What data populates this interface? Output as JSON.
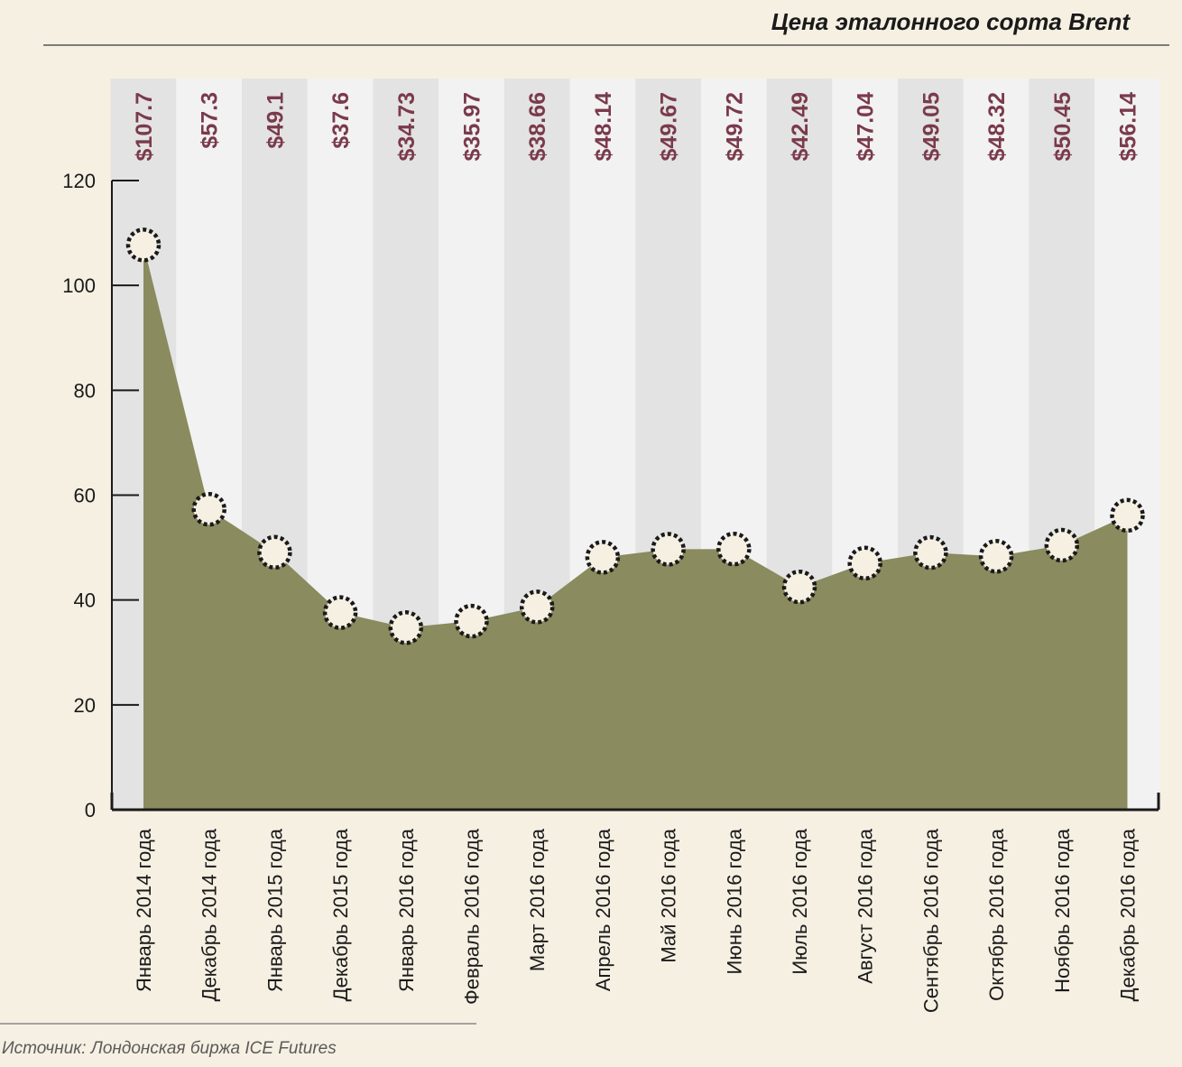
{
  "chart_data": {
    "type": "area",
    "title": "Цена эталонного сорта Brent",
    "source": "Источник: Лондонская биржа ICE Futures",
    "categories": [
      "Январь 2014 года",
      "Декабрь 2014 года",
      "Январь 2015 года",
      "Декабрь 2015 года",
      "Январь 2016 года",
      "Февраль 2016 года",
      "Март 2016 года",
      "Апрель 2016 года",
      "Май 2016 года",
      "Июнь 2016 года",
      "Июль 2016 года",
      "Август 2016 года",
      "Сентябрь 2016 года",
      "Октябрь 2016 года",
      "Ноябрь 2016 года",
      "Декабрь 2016 года"
    ],
    "values": [
      107.7,
      57.3,
      49.1,
      37.6,
      34.73,
      35.97,
      38.66,
      48.14,
      49.67,
      49.72,
      42.49,
      47.04,
      49.05,
      48.32,
      50.45,
      56.14
    ],
    "data_labels": [
      "$107.7",
      "$57.3",
      "$49.1",
      "$37.6",
      "$34.73",
      "$35.97",
      "$38.66",
      "$48.14",
      "$49.67",
      "$49.72",
      "$42.49",
      "$47.04",
      "$49.05",
      "$48.32",
      "$50.45",
      "$56.14"
    ],
    "yticks": [
      0,
      20,
      40,
      60,
      80,
      100,
      120
    ],
    "ylim": [
      0,
      120
    ],
    "xlabel": "",
    "ylabel": "",
    "colors": {
      "background": "#f6f0e3",
      "band_dark": "#e3e3e3",
      "band_light": "#f2f2f2",
      "area_fill": "#8a8b5e",
      "label": "#7a3a4c",
      "marker": "#1a1a1a",
      "axis": "#1a1a1a"
    }
  }
}
